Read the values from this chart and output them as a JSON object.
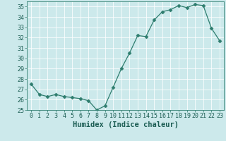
{
  "x": [
    0,
    1,
    2,
    3,
    4,
    5,
    6,
    7,
    8,
    9,
    10,
    11,
    12,
    13,
    14,
    15,
    16,
    17,
    18,
    19,
    20,
    21,
    22,
    23
  ],
  "y": [
    27.5,
    26.5,
    26.3,
    26.5,
    26.3,
    26.2,
    26.1,
    25.9,
    25.0,
    25.4,
    27.2,
    29.0,
    30.5,
    32.2,
    32.1,
    33.7,
    34.5,
    34.7,
    35.1,
    34.9,
    35.2,
    35.1,
    32.9,
    31.7
  ],
  "line_color": "#2e7d6e",
  "marker": "D",
  "marker_size": 2.5,
  "bg_color": "#cce9eb",
  "grid_color": "#b0d8db",
  "xlabel": "Humidex (Indice chaleur)",
  "ylim": [
    25,
    35.5
  ],
  "xlim": [
    -0.5,
    23.5
  ],
  "yticks": [
    25,
    26,
    27,
    28,
    29,
    30,
    31,
    32,
    33,
    34,
    35
  ],
  "xticks": [
    0,
    1,
    2,
    3,
    4,
    5,
    6,
    7,
    8,
    9,
    10,
    11,
    12,
    13,
    14,
    15,
    16,
    17,
    18,
    19,
    20,
    21,
    22,
    23
  ],
  "tick_color": "#2e7d6e",
  "label_color": "#1a5c52",
  "tick_fontsize": 6,
  "xlabel_fontsize": 7.5
}
